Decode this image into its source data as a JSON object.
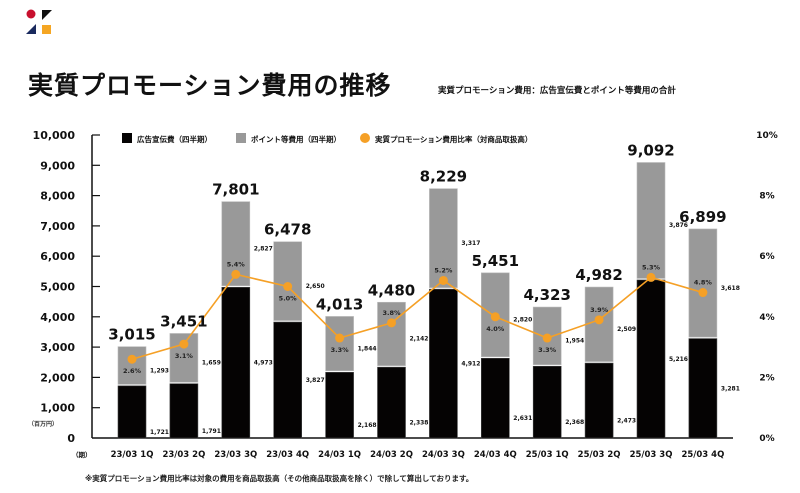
{
  "header": {
    "title": "実質プロモーション費用の推移",
    "subtitle": "実質プロモーション費用：広告宣伝費とポイント等費用の合計"
  },
  "logo": {
    "colors": {
      "circle": "#c8102e",
      "triangle_top": "#111111",
      "triangle_bottom": "#1a2a5e",
      "square": "#f5a623"
    }
  },
  "footnote": "※実質プロモーション費用比率は対象の費用を商品取扱高（その他商品取扱高を除く）で除して算出しております。",
  "colors": {
    "ad": "#050303",
    "point": "#999999",
    "ratio": "#f5a026",
    "axis": "#111111"
  },
  "chart_data": {
    "type": "bar",
    "stacked": true,
    "title": "実質プロモーション費用の推移",
    "categories": [
      "23/03 1Q",
      "23/03 2Q",
      "23/03 3Q",
      "23/03 4Q",
      "24/03 1Q",
      "24/03 2Q",
      "24/03 3Q",
      "24/03 4Q",
      "25/03 1Q",
      "25/03 2Q",
      "25/03 3Q",
      "25/03 4Q"
    ],
    "x_prefix": "（期）",
    "y_unit": "（百万円）",
    "ylim": [
      0,
      10000
    ],
    "yticks": [
      "0",
      "1,000",
      "2,000",
      "3,000",
      "4,000",
      "5,000",
      "6,000",
      "7,000",
      "8,000",
      "9,000",
      "10,000"
    ],
    "y2lim": [
      0,
      10
    ],
    "y2ticks": [
      "0%",
      "2%",
      "4%",
      "6%",
      "8%",
      "10%"
    ],
    "legend_position": "top",
    "series": [
      {
        "name": "広告宣伝費（四半期）",
        "type": "bar",
        "values": [
          1721,
          1791,
          4973,
          3827,
          2168,
          2338,
          4912,
          2631,
          2368,
          2473,
          5216,
          3281
        ],
        "labels": [
          "1,721",
          "1,791",
          "4,973",
          "3,827",
          "2,168",
          "2,338",
          "4,912",
          "2,631",
          "2,368",
          "2,473",
          "5,216",
          "3,281"
        ]
      },
      {
        "name": "ポイント等費用（四半期）",
        "type": "bar",
        "values": [
          1293,
          1659,
          2827,
          2650,
          1844,
          2142,
          3317,
          2820,
          1954,
          2509,
          3876,
          3618
        ],
        "labels": [
          "1,293",
          "1,659",
          "2,827",
          "2,650",
          "1,844",
          "2,142",
          "3,317",
          "2,820",
          "1,954",
          "2,509",
          "3,876",
          "3,618"
        ]
      },
      {
        "name": "実質プロモーション費用比率（対商品取扱高）",
        "type": "line",
        "axis": "right",
        "values": [
          2.6,
          3.1,
          5.4,
          5.0,
          3.3,
          3.8,
          5.2,
          4.0,
          3.3,
          3.9,
          5.3,
          4.8
        ],
        "labels": [
          "2.6%",
          "3.1%",
          "5.4%",
          "5.0%",
          "3.3%",
          "3.8%",
          "5.2%",
          "4.0%",
          "3.3%",
          "3.9%",
          "5.3%",
          "4.8%"
        ]
      }
    ],
    "totals": [
      3015,
      3451,
      7801,
      6478,
      4013,
      4480,
      8229,
      5451,
      4323,
      4982,
      9092,
      6899
    ],
    "total_labels": [
      "3,015",
      "3,451",
      "7,801",
      "6,478",
      "4,013",
      "4,480",
      "8,229",
      "5,451",
      "4,323",
      "4,982",
      "9,092",
      "6,899"
    ]
  }
}
